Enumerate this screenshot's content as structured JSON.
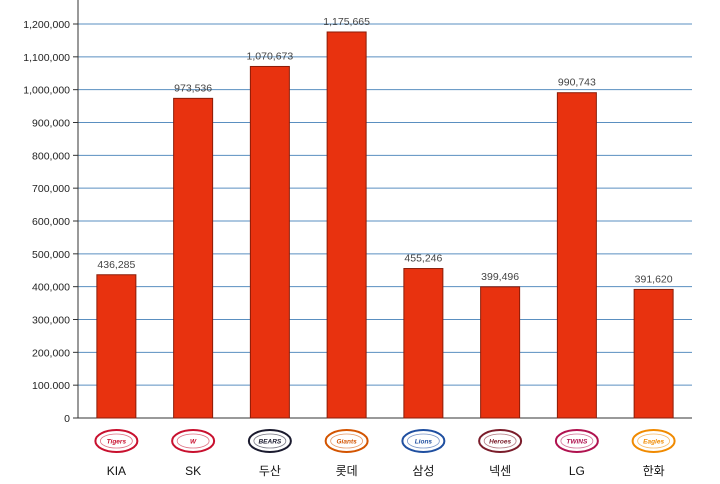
{
  "chart_data": {
    "type": "bar",
    "title": "",
    "xlabel": "",
    "ylabel": "",
    "categories": [
      "KIA",
      "SK",
      "두산",
      "롯데",
      "삼성",
      "넥센",
      "LG",
      "한화"
    ],
    "values": [
      436285,
      973536,
      1070673,
      1175665,
      455246,
      399496,
      990743,
      391620
    ],
    "data_labels": [
      "436,285",
      "973,536",
      "1,070,673",
      "1,175,665",
      "455,246",
      "399,496",
      "990,743",
      "391,620"
    ],
    "ylim": [
      0,
      1200000
    ],
    "yticks": [
      0,
      100000,
      200000,
      300000,
      400000,
      500000,
      600000,
      700000,
      800000,
      900000,
      1000000,
      1100000,
      1200000
    ],
    "ytick_labels": [
      "0",
      "100.000",
      "200,000",
      "300,000",
      "400,000",
      "500,000",
      "600,000",
      "700,000",
      "800,000",
      "900,000",
      "1,000,000",
      "1,100,000",
      "1,200,000"
    ],
    "grid": true,
    "legend": "none",
    "colors": {
      "bar": "#e8320f",
      "bar_edge": "#8a1c08",
      "grid": "#5a8fc0",
      "background": "#ffffff"
    },
    "team_logos": [
      {
        "icon": "tigers-logo-icon",
        "text": "Tigers",
        "color": "#c8102e"
      },
      {
        "icon": "wyverns-logo-icon",
        "text": "W",
        "color": "#c8102e"
      },
      {
        "icon": "bears-logo-icon",
        "text": "BEARS",
        "color": "#1a1a2e"
      },
      {
        "icon": "giants-logo-icon",
        "text": "Giants",
        "color": "#d35400"
      },
      {
        "icon": "lions-logo-icon",
        "text": "Lions",
        "color": "#1f4fa0"
      },
      {
        "icon": "heroes-logo-icon",
        "text": "Heroes",
        "color": "#7a1c2a"
      },
      {
        "icon": "twins-logo-icon",
        "text": "TWINS",
        "color": "#b0124f"
      },
      {
        "icon": "eagles-logo-icon",
        "text": "Eagles",
        "color": "#f08a00"
      }
    ]
  }
}
